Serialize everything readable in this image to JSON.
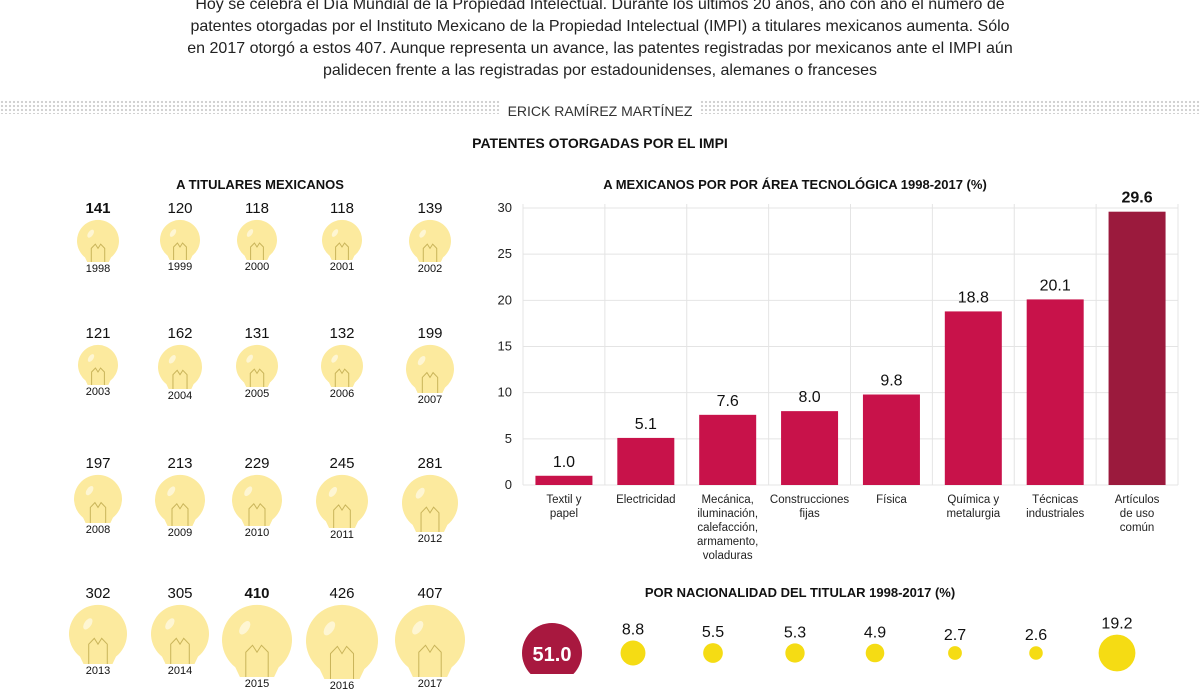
{
  "intro": {
    "line1": "Hoy se celebra el Día Mundial de la Propiedad Intelectual. Durante los últimos 20 años, año con año el número de",
    "line2": "patentes otorgadas por el Instituto Mexicano de la Propiedad Intelectual (IMPI) a titulares mexicanos aumenta. Sólo",
    "line3": "en 2017 otorgó a estos 407. Aunque representa un avance, las patentes registradas por mexicanos ante el IMPI aún",
    "line4": "palidecen frente a las registradas por estadounidenses, alemanes o franceses"
  },
  "author": "ERICK RAMÍREZ MARTÍNEZ",
  "main_title": "PATENTES OTORGADAS POR EL IMPI",
  "colors": {
    "bulb": "#fcea9e",
    "base": "#a8183f",
    "bar": "#c8124a",
    "bar_highlight": "#9b1a3d",
    "dot": "#f5dc14",
    "big_dot": "#a8183f"
  },
  "chart_data": [
    {
      "type": "pictogram",
      "title": "A TITULARES MEXICANOS",
      "years": [
        "1998",
        "1999",
        "2000",
        "2001",
        "2002",
        "2003",
        "2004",
        "2005",
        "2006",
        "2007",
        "2008",
        "2009",
        "2010",
        "2011",
        "2012",
        "2013",
        "2014",
        "2015",
        "2016",
        "2017"
      ],
      "values": [
        141,
        120,
        118,
        118,
        139,
        121,
        162,
        131,
        132,
        199,
        197,
        213,
        229,
        245,
        281,
        302,
        305,
        410,
        426,
        407
      ],
      "bold": [
        "1998",
        "2015"
      ]
    },
    {
      "type": "bar",
      "title": "A MEXICANOS POR POR ÁREA TECNOLÓGICA 1998-2017 (%)",
      "categories": [
        [
          "Textil y",
          "papel"
        ],
        [
          "Electricidad"
        ],
        [
          "Mecánica,",
          "iluminación,",
          "calefacción,",
          "armamento,",
          "voladuras"
        ],
        [
          "Construcciones",
          "fijas"
        ],
        [
          "Física"
        ],
        [
          "Química y",
          "metalurgia"
        ],
        [
          "Técnicas",
          "industriales"
        ],
        [
          "Artículos",
          "de uso",
          "común"
        ]
      ],
      "values": [
        1.0,
        5.1,
        7.6,
        8.0,
        9.8,
        18.8,
        20.1,
        29.6
      ],
      "value_labels": [
        "1.0",
        "5.1",
        "7.6",
        "8.0",
        "9.8",
        "18.8",
        "20.1",
        "29.6"
      ],
      "highlight": "Artículos de uso común",
      "ylim": [
        0,
        30
      ],
      "yticks": [
        "0",
        "5",
        "10",
        "15",
        "20",
        "25",
        "30"
      ],
      "grid": true
    },
    {
      "type": "bubble",
      "title": "POR NACIONALIDAD DEL TITULAR 1998-2017 (%)",
      "values": [
        51.0,
        8.8,
        5.5,
        5.3,
        4.9,
        2.7,
        2.6,
        19.2
      ],
      "value_labels": [
        "51.0",
        "8.8",
        "5.5",
        "5.3",
        "4.9",
        "2.7",
        "2.6",
        "19.2"
      ]
    }
  ]
}
